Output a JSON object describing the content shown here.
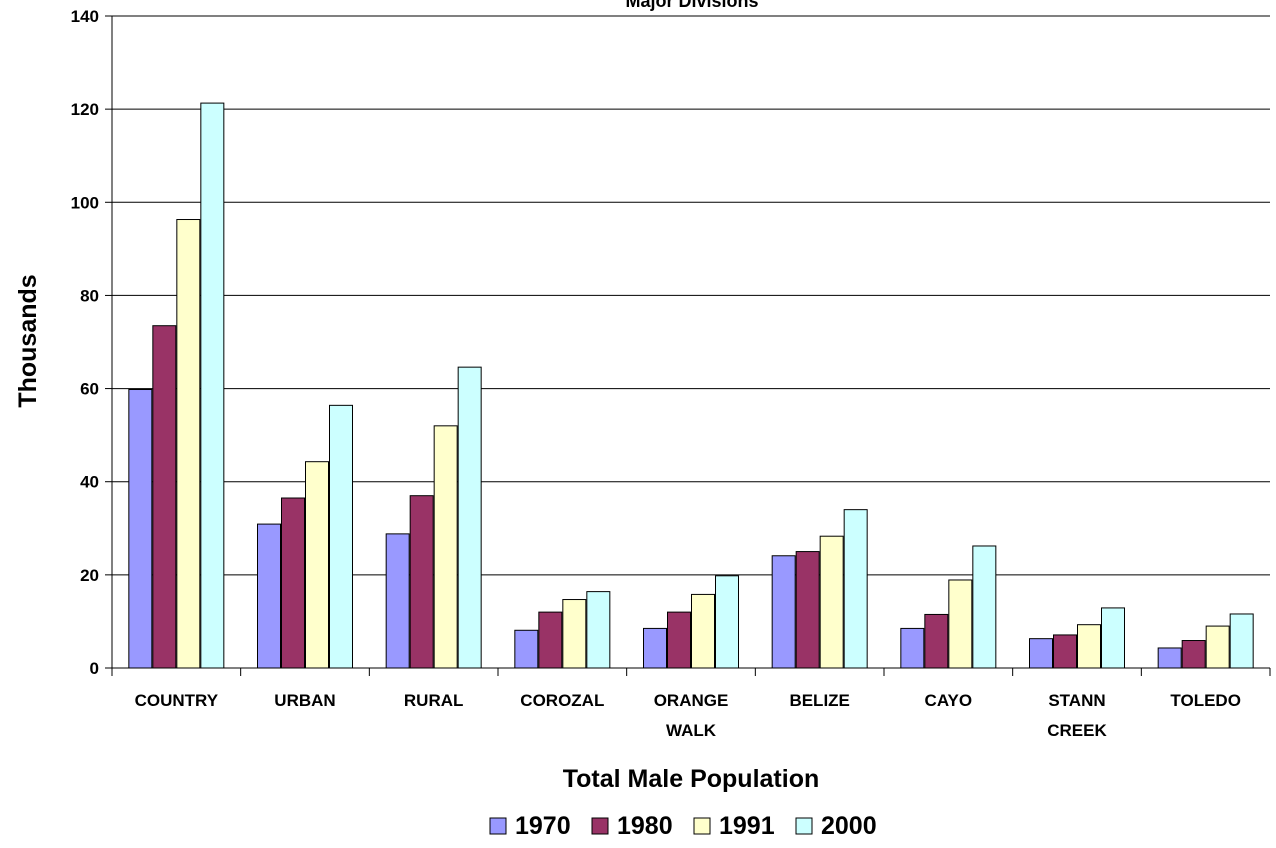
{
  "chart_data": {
    "type": "bar",
    "title": "Major Divisions",
    "xlabel": "Total Male Population",
    "ylabel": "Thousands",
    "ylim": [
      0,
      140
    ],
    "yticks": [
      0,
      20,
      40,
      60,
      80,
      100,
      120,
      140
    ],
    "grid": true,
    "legend_position": "bottom",
    "categories": [
      "COUNTRY",
      "URBAN",
      "RURAL",
      "COROZAL",
      "ORANGE WALK",
      "BELIZE",
      "CAYO",
      "STANN CREEK",
      "TOLEDO"
    ],
    "category_lines": [
      [
        "COUNTRY"
      ],
      [
        "URBAN"
      ],
      [
        "RURAL"
      ],
      [
        "COROZAL"
      ],
      [
        "ORANGE",
        "WALK"
      ],
      [
        "BELIZE"
      ],
      [
        "CAYO"
      ],
      [
        "STANN",
        "CREEK"
      ],
      [
        "TOLEDO"
      ]
    ],
    "series": [
      {
        "name": "1970",
        "color": "#9999ff",
        "values": [
          59.8,
          30.9,
          28.8,
          8.1,
          8.5,
          24.1,
          8.5,
          6.3,
          4.3
        ]
      },
      {
        "name": "1980",
        "color": "#993366",
        "values": [
          73.5,
          36.5,
          37.0,
          12.0,
          12.0,
          25.0,
          11.5,
          7.1,
          5.9
        ]
      },
      {
        "name": "1991",
        "color": "#ffffcc",
        "values": [
          96.3,
          44.3,
          52.0,
          14.7,
          15.8,
          28.3,
          18.9,
          9.3,
          9.0
        ]
      },
      {
        "name": "2000",
        "color": "#ccffff",
        "values": [
          121.3,
          56.4,
          64.6,
          16.4,
          19.8,
          34.0,
          26.2,
          12.9,
          11.6
        ]
      }
    ]
  }
}
